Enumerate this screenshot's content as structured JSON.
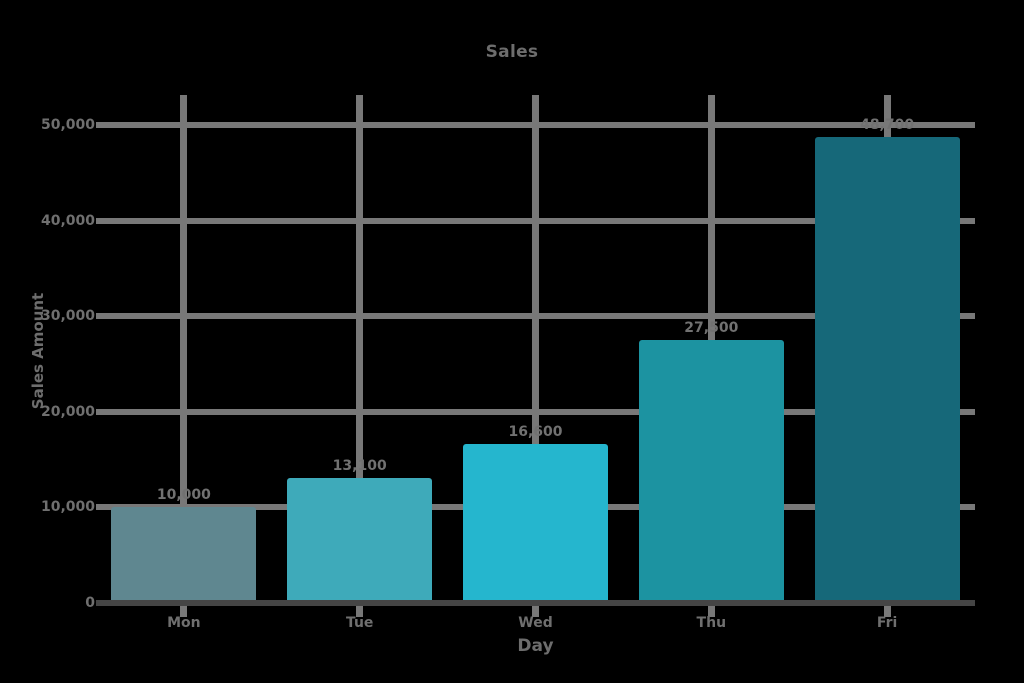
{
  "figure": {
    "title": "Sales",
    "xlabel": "Day",
    "ylabel": "Sales Amount"
  },
  "chart_data": {
    "type": "bar",
    "title": "Sales",
    "xlabel": "Day",
    "ylabel": "Sales Amount",
    "categories": [
      "Mon",
      "Tue",
      "Wed",
      "Thu",
      "Fri"
    ],
    "values": [
      10000,
      13100,
      16600,
      27500,
      48700
    ],
    "value_labels": [
      "10,000",
      "13,100",
      "16,600",
      "27,500",
      "48,700"
    ],
    "bar_colors": [
      "#5F8790",
      "#3EAABA",
      "#25B6CE",
      "#1C93A1",
      "#166879"
    ],
    "yticks": [
      0,
      10000,
      20000,
      30000,
      40000,
      50000
    ],
    "ytick_labels": [
      "0",
      "10,000",
      "20,000",
      "30,000",
      "40,000",
      "50,000"
    ],
    "ylim": [
      0,
      53000
    ],
    "grid": true,
    "legend_position": "none",
    "colors": {
      "grid": "#787878",
      "axis": "#454545",
      "text": "#6F6F6F",
      "background": "#000000"
    }
  }
}
